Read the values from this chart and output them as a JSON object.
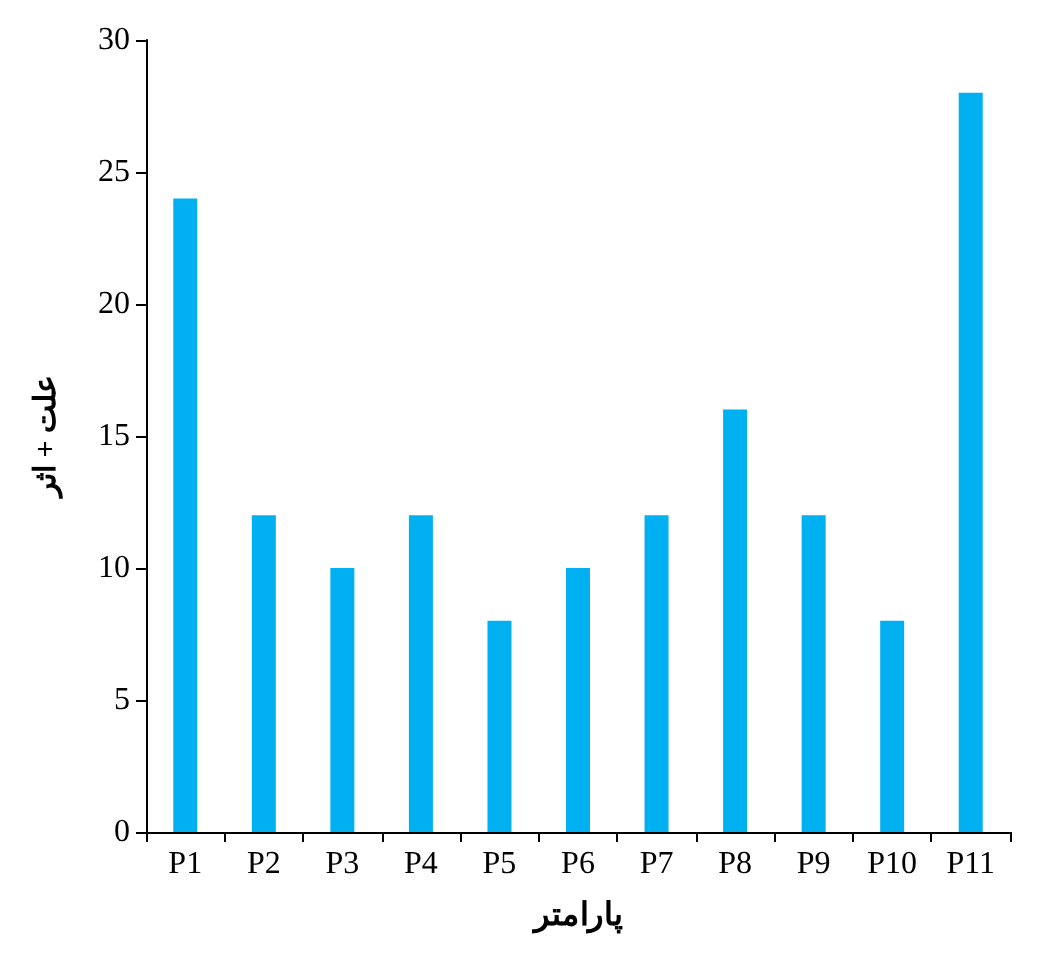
{
  "chart_data": {
    "type": "bar",
    "xlabel": "پارامتر",
    "ylabel": "علت + اثر",
    "categories": [
      "P1",
      "P2",
      "P3",
      "P4",
      "P5",
      "P6",
      "P7",
      "P8",
      "P9",
      "P10",
      "P11"
    ],
    "values": [
      24,
      12,
      10,
      12,
      8,
      10,
      12,
      16,
      12,
      8,
      28
    ],
    "color": "#00b0f0",
    "ylim": [
      0,
      30
    ],
    "yticks": [
      0,
      5,
      10,
      15,
      20,
      25,
      30
    ],
    "grid": false
  }
}
